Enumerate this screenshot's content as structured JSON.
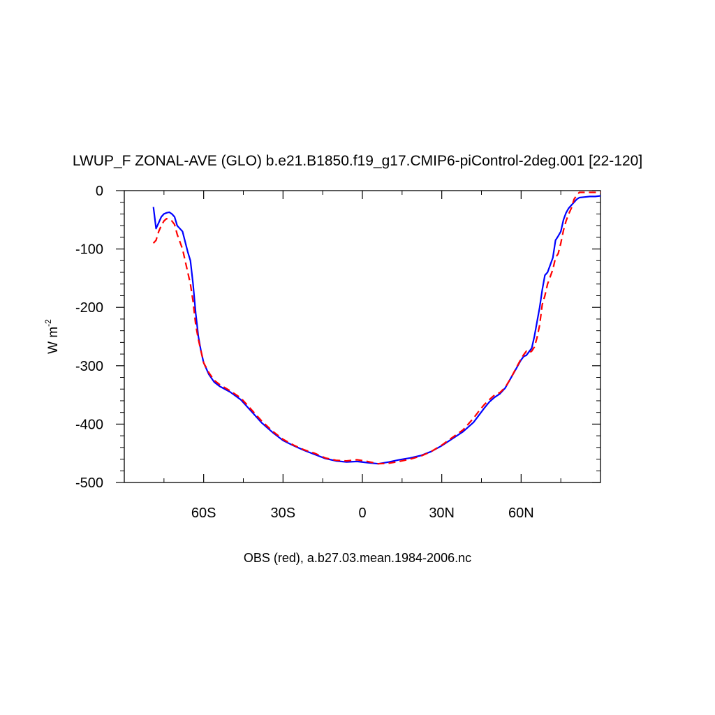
{
  "chart_data": {
    "type": "line",
    "title": "LWUP_F ZONAL-AVE (GLO) b.e21.B1850.f19_g17.CMIP6-piControl-2deg.001 [22-120]",
    "ylabel": "W m",
    "ylabel_exponent": "-2",
    "caption": "OBS (red), a.b27.03.mean.1984-2006.nc",
    "xlim": [
      -90,
      90
    ],
    "ylim": [
      -500,
      0
    ],
    "x_ticks": [
      {
        "value": -60,
        "label": "60S"
      },
      {
        "value": -30,
        "label": "30S"
      },
      {
        "value": 0,
        "label": "0"
      },
      {
        "value": 30,
        "label": "30N"
      },
      {
        "value": 60,
        "label": "60N"
      }
    ],
    "y_ticks": [
      {
        "value": 0,
        "label": "0"
      },
      {
        "value": -100,
        "label": "-100"
      },
      {
        "value": -200,
        "label": "-200"
      },
      {
        "value": -300,
        "label": "-300"
      },
      {
        "value": -400,
        "label": "-400"
      },
      {
        "value": -500,
        "label": "-500"
      }
    ],
    "grid": false,
    "series": [
      {
        "style": "solid",
        "color": "#0000ff",
        "points": [
          [
            -79,
            -28
          ],
          [
            -78,
            -65
          ],
          [
            -77,
            -55
          ],
          [
            -76,
            -45
          ],
          [
            -75,
            -40
          ],
          [
            -74,
            -38
          ],
          [
            -73,
            -37
          ],
          [
            -72,
            -40
          ],
          [
            -71,
            -45
          ],
          [
            -70,
            -60
          ],
          [
            -68,
            -70
          ],
          [
            -66,
            -105
          ],
          [
            -65,
            -120
          ],
          [
            -64,
            -160
          ],
          [
            -63,
            -210
          ],
          [
            -62,
            -250
          ],
          [
            -61,
            -275
          ],
          [
            -60,
            -295
          ],
          [
            -58,
            -315
          ],
          [
            -56,
            -328
          ],
          [
            -54,
            -335
          ],
          [
            -50,
            -345
          ],
          [
            -46,
            -358
          ],
          [
            -42,
            -378
          ],
          [
            -38,
            -398
          ],
          [
            -34,
            -414
          ],
          [
            -30,
            -428
          ],
          [
            -26,
            -437
          ],
          [
            -22,
            -445
          ],
          [
            -18,
            -452
          ],
          [
            -14,
            -459
          ],
          [
            -10,
            -463
          ],
          [
            -6,
            -465
          ],
          [
            -2,
            -464
          ],
          [
            2,
            -466
          ],
          [
            6,
            -468
          ],
          [
            10,
            -465
          ],
          [
            14,
            -461
          ],
          [
            18,
            -458
          ],
          [
            22,
            -454
          ],
          [
            26,
            -447
          ],
          [
            30,
            -437
          ],
          [
            34,
            -425
          ],
          [
            38,
            -413
          ],
          [
            42,
            -397
          ],
          [
            44,
            -385
          ],
          [
            46,
            -373
          ],
          [
            48,
            -362
          ],
          [
            50,
            -354
          ],
          [
            52,
            -348
          ],
          [
            54,
            -338
          ],
          [
            56,
            -322
          ],
          [
            58,
            -306
          ],
          [
            60,
            -290
          ],
          [
            61,
            -284
          ],
          [
            62,
            -282
          ],
          [
            63,
            -276
          ],
          [
            64,
            -270
          ],
          [
            65,
            -250
          ],
          [
            66,
            -225
          ],
          [
            67,
            -200
          ],
          [
            68,
            -170
          ],
          [
            69,
            -145
          ],
          [
            70,
            -140
          ],
          [
            72,
            -115
          ],
          [
            73,
            -85
          ],
          [
            74,
            -78
          ],
          [
            75,
            -70
          ],
          [
            76,
            -50
          ],
          [
            77,
            -38
          ],
          [
            78,
            -30
          ],
          [
            79,
            -25
          ],
          [
            80,
            -20
          ],
          [
            81,
            -15
          ],
          [
            82,
            -12
          ],
          [
            84,
            -11
          ],
          [
            86,
            -10
          ],
          [
            88,
            -10
          ],
          [
            90,
            -9
          ]
        ]
      },
      {
        "style": "dashed",
        "color": "#ff0000",
        "points": [
          [
            -79,
            -90
          ],
          [
            -78,
            -85
          ],
          [
            -77,
            -70
          ],
          [
            -76,
            -60
          ],
          [
            -75,
            -52
          ],
          [
            -74,
            -48
          ],
          [
            -73,
            -50
          ],
          [
            -72,
            -52
          ],
          [
            -71,
            -58
          ],
          [
            -70,
            -75
          ],
          [
            -68,
            -100
          ],
          [
            -66,
            -140
          ],
          [
            -65,
            -160
          ],
          [
            -64,
            -190
          ],
          [
            -63,
            -230
          ],
          [
            -62,
            -255
          ],
          [
            -61,
            -275
          ],
          [
            -60,
            -295
          ],
          [
            -58,
            -312
          ],
          [
            -56,
            -325
          ],
          [
            -54,
            -332
          ],
          [
            -50,
            -343
          ],
          [
            -46,
            -355
          ],
          [
            -42,
            -375
          ],
          [
            -38,
            -395
          ],
          [
            -34,
            -412
          ],
          [
            -30,
            -426
          ],
          [
            -26,
            -436
          ],
          [
            -22,
            -444
          ],
          [
            -18,
            -450
          ],
          [
            -14,
            -458
          ],
          [
            -10,
            -462
          ],
          [
            -6,
            -463
          ],
          [
            -2,
            -461
          ],
          [
            2,
            -464
          ],
          [
            6,
            -468
          ],
          [
            10,
            -467
          ],
          [
            14,
            -464
          ],
          [
            18,
            -460
          ],
          [
            22,
            -455
          ],
          [
            26,
            -447
          ],
          [
            30,
            -436
          ],
          [
            34,
            -423
          ],
          [
            38,
            -410
          ],
          [
            42,
            -390
          ],
          [
            44,
            -378
          ],
          [
            46,
            -367
          ],
          [
            48,
            -358
          ],
          [
            50,
            -350
          ],
          [
            52,
            -346
          ],
          [
            54,
            -337
          ],
          [
            56,
            -322
          ],
          [
            58,
            -305
          ],
          [
            60,
            -288
          ],
          [
            61,
            -281
          ],
          [
            62,
            -275
          ],
          [
            63,
            -278
          ],
          [
            64,
            -275
          ],
          [
            65,
            -268
          ],
          [
            66,
            -252
          ],
          [
            67,
            -230
          ],
          [
            68,
            -195
          ],
          [
            69,
            -180
          ],
          [
            70,
            -160
          ],
          [
            72,
            -135
          ],
          [
            73,
            -115
          ],
          [
            74,
            -108
          ],
          [
            75,
            -90
          ],
          [
            76,
            -68
          ],
          [
            77,
            -52
          ],
          [
            78,
            -40
          ],
          [
            79,
            -30
          ],
          [
            80,
            -15
          ],
          [
            81,
            -8
          ],
          [
            82,
            -3
          ],
          [
            84,
            -3
          ],
          [
            86,
            -3
          ],
          [
            88,
            -3
          ],
          [
            90,
            -3
          ]
        ]
      }
    ]
  }
}
